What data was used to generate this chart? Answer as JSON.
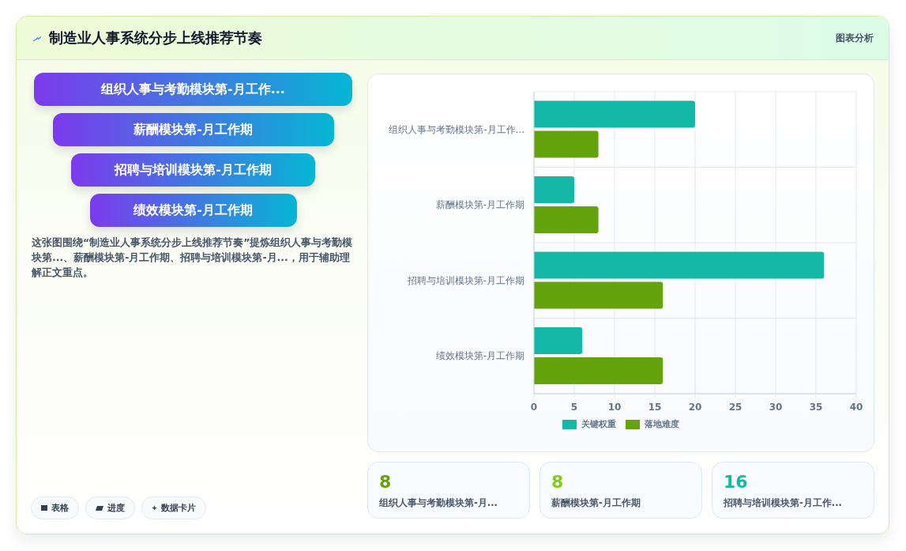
{
  "chart_data": {
    "type": "bar",
    "orientation": "horizontal",
    "title": "制造业人事系统分步上线推荐节奏",
    "categories": [
      "组织人事与考勤模块第-月工作...",
      "薪酬模块第-月工作期",
      "招聘与培训模块第-月工作期",
      "绩效模块第-月工作期"
    ],
    "series": [
      {
        "name": "关键权重",
        "color": "#14b8a6",
        "values": [
          20,
          5,
          36,
          6
        ]
      },
      {
        "name": "落地难度",
        "color": "#65a30d",
        "values": [
          8,
          8,
          16,
          16
        ]
      }
    ],
    "xlim": [
      0,
      40
    ],
    "xticks": [
      0,
      5,
      10,
      15,
      20,
      25,
      30,
      35,
      40
    ],
    "grid": true,
    "legend": "bottom",
    "annotations": [
      "图表分析",
      "组织人事与考勤模块第-月工作...",
      "薪酬模块第-月工作期",
      "招聘与培训模块第-月工作期",
      "绩效模块第-月工作期",
      "这张图围绕“制造业人事系统分步上线推荐节奏”提炼组织人事与考勤模块第...、薪酬模块第-月工作期、招聘与培训模块第-月...，用于辅助理解正文重点。",
      "表格",
      "进度",
      "数据卡片",
      "8",
      "组织人事与考勤模块第-月...",
      "8",
      "薪酬模块第-月工作期",
      "16",
      "招聘与培训模块第-月工作..."
    ]
  }
}
